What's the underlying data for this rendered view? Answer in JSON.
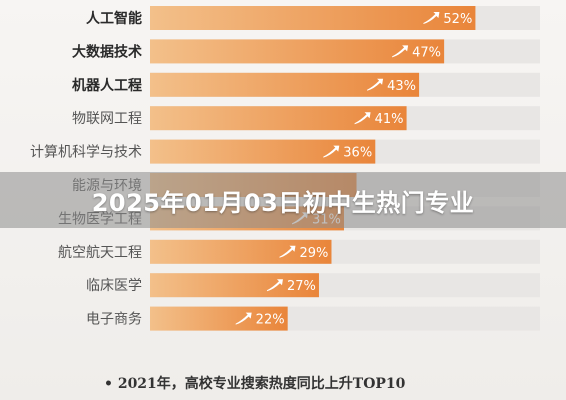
{
  "chart_data": {
    "type": "bar",
    "orientation": "horizontal",
    "categories": [
      "人工智能",
      "大数据技术",
      "机器人工程",
      "物联网工程",
      "计算机科学与技术",
      "能源与环境",
      "生物医学工程",
      "航空航天工程",
      "临床医学",
      "电子商务"
    ],
    "values": [
      52,
      47,
      43,
      41,
      36,
      33,
      31,
      29,
      27,
      22
    ],
    "value_labels": [
      "52%",
      "47%",
      "43%",
      "41%",
      "36%",
      "",
      "31%",
      "29%",
      "27%",
      "22%"
    ],
    "bold_categories": [
      0,
      1,
      2
    ],
    "caption": "• 2021年，高校专业搜索热度同比上升TOP10",
    "xlim": [
      0,
      100
    ],
    "grid": false,
    "legend": "none",
    "colors": {
      "bar_start": "#f3c08a",
      "bar_end": "#e9853a",
      "track": "#e8e6e4",
      "label_bold": "#2a2a2a",
      "label": "#555555"
    }
  },
  "overlay": {
    "title": "2025年01月03日初中生热门专业"
  }
}
